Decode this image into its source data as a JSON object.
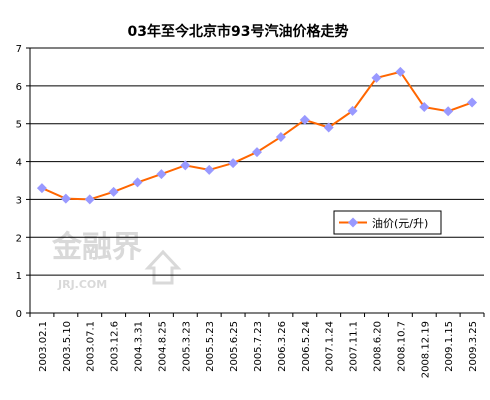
{
  "chart_data": {
    "type": "line",
    "title": "03年至今北京市93号汽油价格走势",
    "categories": [
      "2003.02.1",
      "2003.5.10",
      "2003.07.1",
      "2003.12.6",
      "2004.3.31",
      "2004.8.25",
      "2005.3.23",
      "2005.5.23",
      "2005.6.25",
      "2005.7.23",
      "2006.3.26",
      "2006.5.24",
      "2007.1.24",
      "2007.11.1",
      "2008.6.20",
      "2008.10.7",
      "2008.12.19",
      "2009.1.15",
      "2009.3.25"
    ],
    "series": [
      {
        "name": "油价(元/升)",
        "values": [
          3.3,
          3.02,
          3.0,
          3.2,
          3.45,
          3.67,
          3.9,
          3.78,
          3.96,
          4.25,
          4.65,
          5.1,
          4.9,
          5.34,
          6.21,
          6.37,
          5.44,
          5.33,
          5.56
        ]
      }
    ],
    "ylim": [
      0,
      7
    ],
    "yticks": [
      0,
      1,
      2,
      3,
      4,
      5,
      6,
      7
    ],
    "xlabel": "",
    "ylabel": "",
    "grid": "horizontal",
    "legend_position": "right-middle",
    "colors": {
      "line": "#ff6600",
      "marker": "#9999ff",
      "grid": "#000000"
    }
  },
  "watermark": {
    "text": "金融界",
    "subtext": "JRJ.COM"
  }
}
